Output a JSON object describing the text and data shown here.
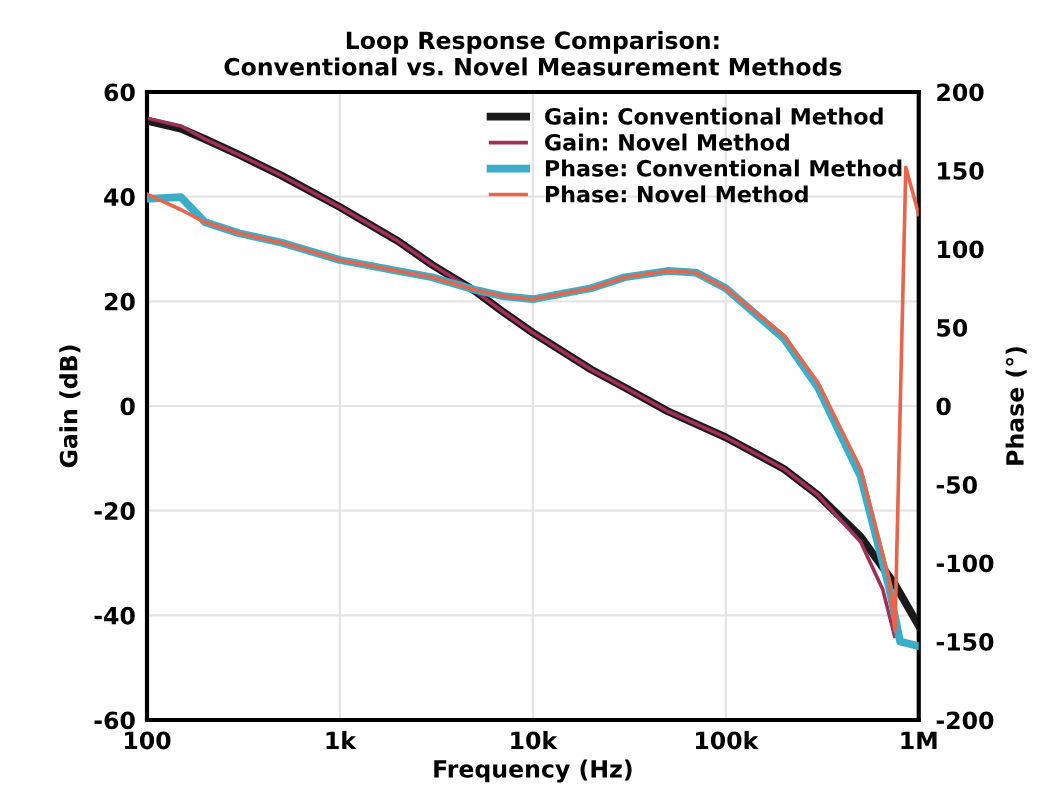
{
  "chart_data": {
    "type": "line",
    "title": "Loop Response Comparison:\nConventional vs. Novel Measurement Methods",
    "xlabel": "Frequency (Hz)",
    "ylabel": "Gain (dB)",
    "y2label": "Phase (°)",
    "log": "x",
    "xlim": [
      100,
      1000000
    ],
    "xticks": [
      {
        "value": 100,
        "label": "100"
      },
      {
        "value": 1000,
        "label": "1k"
      },
      {
        "value": 10000,
        "label": "10k"
      },
      {
        "value": 100000,
        "label": "100k"
      },
      {
        "value": 1000000,
        "label": "1M"
      }
    ],
    "ylim": [
      -60,
      60
    ],
    "yticks": [
      -60,
      -40,
      -20,
      0,
      20,
      40,
      60
    ],
    "y2lim": [
      -200,
      200
    ],
    "y2ticks": [
      -200,
      -150,
      -100,
      -50,
      0,
      50,
      100,
      150,
      200
    ],
    "grid": true,
    "legend": "top right",
    "marker": "none",
    "line_style": "solid",
    "series": [
      {
        "name": "Gain: Conventional Method",
        "color": "#1a1a1a",
        "x": [
          100,
          150,
          200,
          300,
          500,
          1000,
          2000,
          3000,
          5000,
          7000,
          10000,
          20000,
          30000,
          50000,
          100000,
          200000,
          300000,
          500000,
          750000,
          1000000
        ],
        "values": [
          54.5,
          53,
          51,
          48,
          44,
          38,
          31.5,
          27,
          22,
          18,
          14,
          7,
          3.5,
          -1,
          -6,
          -12,
          -17,
          -25,
          -34,
          -42
        ]
      },
      {
        "name": "Gain: Novel Method",
        "color": "#a0305a",
        "x": [
          100,
          150,
          200,
          300,
          500,
          1000,
          2000,
          3000,
          5000,
          7000,
          10000,
          20000,
          30000,
          50000,
          100000,
          200000,
          300000,
          500000,
          650000,
          750000
        ],
        "values": [
          55,
          53.5,
          51,
          48,
          44,
          38,
          31.5,
          27,
          22,
          18,
          14,
          7,
          3.5,
          -1,
          -6,
          -12,
          -17,
          -26,
          -35,
          -44
        ]
      },
      {
        "name": "Phase: Conventional Method",
        "color": "#3aaec8",
        "axis": "y2",
        "x": [
          100,
          150,
          200,
          300,
          500,
          1000,
          2000,
          3000,
          5000,
          7000,
          10000,
          20000,
          30000,
          50000,
          70000,
          100000,
          200000,
          300000,
          500000,
          700000,
          800000,
          1000000
        ],
        "values": [
          132,
          133,
          117,
          110,
          104,
          93,
          86,
          82,
          74,
          70,
          68,
          75,
          82,
          86,
          85,
          75,
          43,
          12,
          -45,
          -115,
          -150,
          -153
        ]
      },
      {
        "name": "Phase: Novel Method",
        "color": "#e8644a",
        "axis": "y2",
        "x": [
          100,
          150,
          200,
          300,
          500,
          1000,
          2000,
          3000,
          5000,
          7000,
          10000,
          20000,
          30000,
          50000,
          70000,
          100000,
          200000,
          300000,
          500000,
          700000,
          753000,
          857000,
          1000000
        ],
        "values": [
          135,
          125,
          117,
          110,
          104,
          93,
          86,
          82,
          74,
          70,
          68,
          75,
          82,
          86,
          85,
          75,
          45,
          15,
          -40,
          -110,
          -143,
          152,
          122
        ]
      }
    ]
  }
}
